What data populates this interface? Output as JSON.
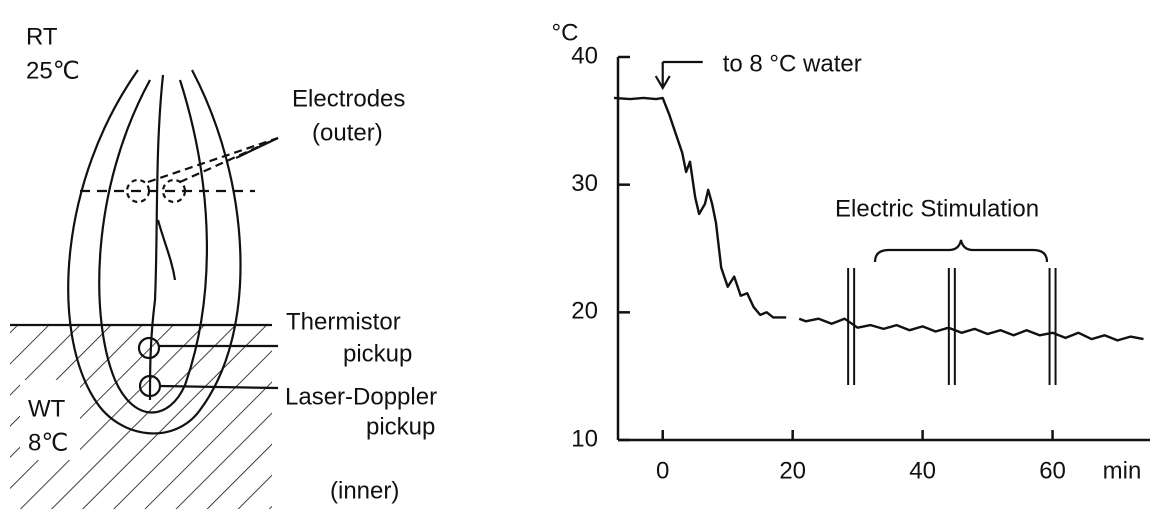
{
  "diagram": {
    "room_label": "RT",
    "room_temp": "25℃",
    "electrodes": "Electrodes",
    "electrodes_note": "(outer)",
    "thermistor": "Thermistor",
    "thermistor_note": "pickup",
    "laser": "Laser-Doppler",
    "laser_note": "pickup",
    "inner_note": "(inner)",
    "water_label": "WT",
    "water_temp": "8℃"
  },
  "chart_data": {
    "type": "line",
    "y_unit": "°C",
    "x_label": "min",
    "annotations": [
      {
        "text": "to 8 °C water",
        "x": 0
      },
      {
        "text": "Electric Stimulation"
      }
    ],
    "stimulation_times": [
      29,
      44.5,
      60
    ],
    "x": [
      -7.5,
      -5,
      -3,
      -1,
      0,
      1,
      2,
      3,
      3.6,
      4.2,
      5,
      5.6,
      6.5,
      7,
      7.6,
      8.2,
      9,
      10,
      11,
      12,
      13,
      14,
      15,
      16,
      17,
      19,
      20,
      21,
      22,
      24,
      26,
      28,
      30,
      32,
      34,
      36,
      38,
      40,
      42,
      44,
      46,
      48,
      50,
      52,
      54,
      56,
      58,
      60,
      62,
      64,
      66,
      68,
      70,
      72,
      74
    ],
    "values": [
      36.8,
      36.7,
      36.8,
      36.7,
      36.8,
      35.5,
      34.0,
      32.5,
      31.0,
      31.8,
      29.0,
      27.7,
      28.5,
      29.6,
      28.5,
      27.0,
      23.5,
      22.0,
      22.8,
      21.3,
      21.5,
      20.4,
      19.8,
      20.0,
      19.6,
      19.6,
      null,
      19.5,
      19.3,
      19.5,
      19.1,
      19.5,
      18.8,
      19.0,
      18.7,
      19.0,
      18.6,
      18.9,
      18.5,
      18.8,
      18.4,
      18.7,
      18.3,
      18.6,
      18.2,
      18.6,
      18.2,
      18.4,
      18.0,
      18.4,
      17.9,
      18.2,
      17.8,
      18.1,
      17.9
    ],
    "color": "#111111",
    "xlim": [
      -7.5,
      75
    ],
    "xticks": [
      0,
      20,
      40,
      60
    ],
    "ylim": [
      10,
      40
    ],
    "yticks": [
      10,
      20,
      30,
      40
    ],
    "grid": false
  }
}
